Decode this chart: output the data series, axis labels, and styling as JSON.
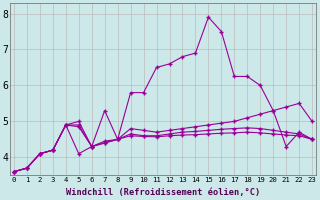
{
  "xlabel": "Windchill (Refroidissement éolien,°C)",
  "bg_color": "#cce8e8",
  "line_color": "#990099",
  "grid_color": "#bbbbbb",
  "series": [
    [
      3.6,
      3.7,
      4.1,
      4.2,
      4.9,
      4.1,
      4.3,
      5.3,
      4.5,
      5.8,
      5.8,
      6.5,
      6.6,
      6.8,
      6.9,
      7.9,
      7.5,
      6.25,
      6.25,
      6.0,
      5.3,
      4.3,
      4.7,
      4.5
    ],
    [
      3.6,
      3.7,
      4.1,
      4.2,
      4.9,
      5.0,
      4.3,
      4.45,
      4.5,
      4.8,
      4.75,
      4.7,
      4.75,
      4.8,
      4.85,
      4.9,
      4.95,
      5.0,
      5.1,
      5.2,
      5.3,
      5.4,
      5.5,
      5.0
    ],
    [
      3.6,
      3.7,
      4.1,
      4.2,
      4.9,
      4.9,
      4.3,
      4.4,
      4.5,
      4.65,
      4.6,
      4.6,
      4.65,
      4.7,
      4.72,
      4.75,
      4.78,
      4.8,
      4.82,
      4.8,
      4.75,
      4.7,
      4.65,
      4.5
    ],
    [
      3.6,
      3.7,
      4.1,
      4.2,
      4.9,
      4.85,
      4.3,
      4.4,
      4.5,
      4.6,
      4.58,
      4.57,
      4.6,
      4.62,
      4.63,
      4.65,
      4.67,
      4.68,
      4.7,
      4.68,
      4.65,
      4.62,
      4.6,
      4.5
    ]
  ],
  "ylim": [
    3.5,
    8.3
  ],
  "yticks": [
    4,
    5,
    6,
    7,
    8
  ],
  "xlim": [
    -0.3,
    23.3
  ],
  "xtick_labels": [
    "0",
    "1",
    "2",
    "3",
    "4",
    "5",
    "6",
    "7",
    "8",
    "9",
    "10",
    "11",
    "12",
    "13",
    "14",
    "15",
    "16",
    "17",
    "18",
    "19",
    "20",
    "21",
    "22",
    "23"
  ],
  "figsize": [
    3.2,
    2.0
  ],
  "dpi": 100
}
